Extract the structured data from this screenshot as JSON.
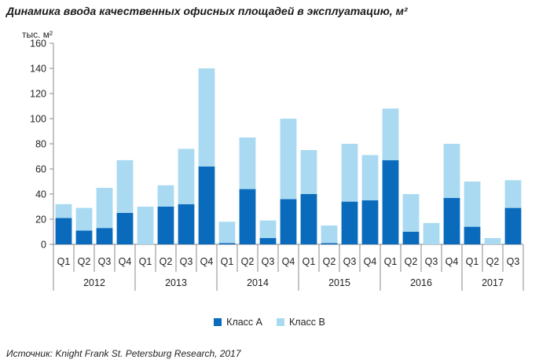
{
  "title": "Динамика ввода качественных офисных площадей в эксплуатацию, м²",
  "unit_label": "тыс. м²",
  "source": "Источник: Knight Frank St. Petersburg Research, 2017",
  "colors": {
    "class_a": "#0a6bbd",
    "class_b": "#a9daf1",
    "axis": "#888888"
  },
  "legend": [
    {
      "label": "Класс A",
      "color_key": "class_a"
    },
    {
      "label": "Класс B",
      "color_key": "class_b"
    }
  ],
  "chart_data": {
    "type": "bar",
    "stacked": true,
    "categories": [
      "Q1",
      "Q2",
      "Q3",
      "Q4",
      "Q1",
      "Q2",
      "Q3",
      "Q4",
      "Q1",
      "Q2",
      "Q3",
      "Q4",
      "Q1",
      "Q2",
      "Q3",
      "Q4",
      "Q1",
      "Q2",
      "Q3",
      "Q4",
      "Q1",
      "Q2",
      "Q3"
    ],
    "groups": [
      {
        "label": "2012",
        "count": 4
      },
      {
        "label": "2013",
        "count": 4
      },
      {
        "label": "2014",
        "count": 4
      },
      {
        "label": "2015",
        "count": 4
      },
      {
        "label": "2016",
        "count": 4
      },
      {
        "label": "2017",
        "count": 3
      }
    ],
    "series": [
      {
        "name": "Класс A",
        "values": [
          21,
          11,
          13,
          25,
          0,
          30,
          32,
          62,
          1,
          44,
          5,
          36,
          40,
          1,
          34,
          35,
          67,
          10,
          0,
          37,
          14,
          0,
          29
        ]
      },
      {
        "name": "Класс B",
        "values": [
          11,
          18,
          32,
          42,
          30,
          17,
          44,
          78,
          17,
          41,
          14,
          64,
          35,
          14,
          46,
          36,
          41,
          30,
          17,
          43,
          36,
          5,
          22
        ]
      }
    ],
    "ylim": [
      0,
      160
    ],
    "yticks": [
      0,
      20,
      40,
      60,
      80,
      100,
      120,
      140,
      160
    ],
    "legend_position": "bottom",
    "grid": false
  }
}
